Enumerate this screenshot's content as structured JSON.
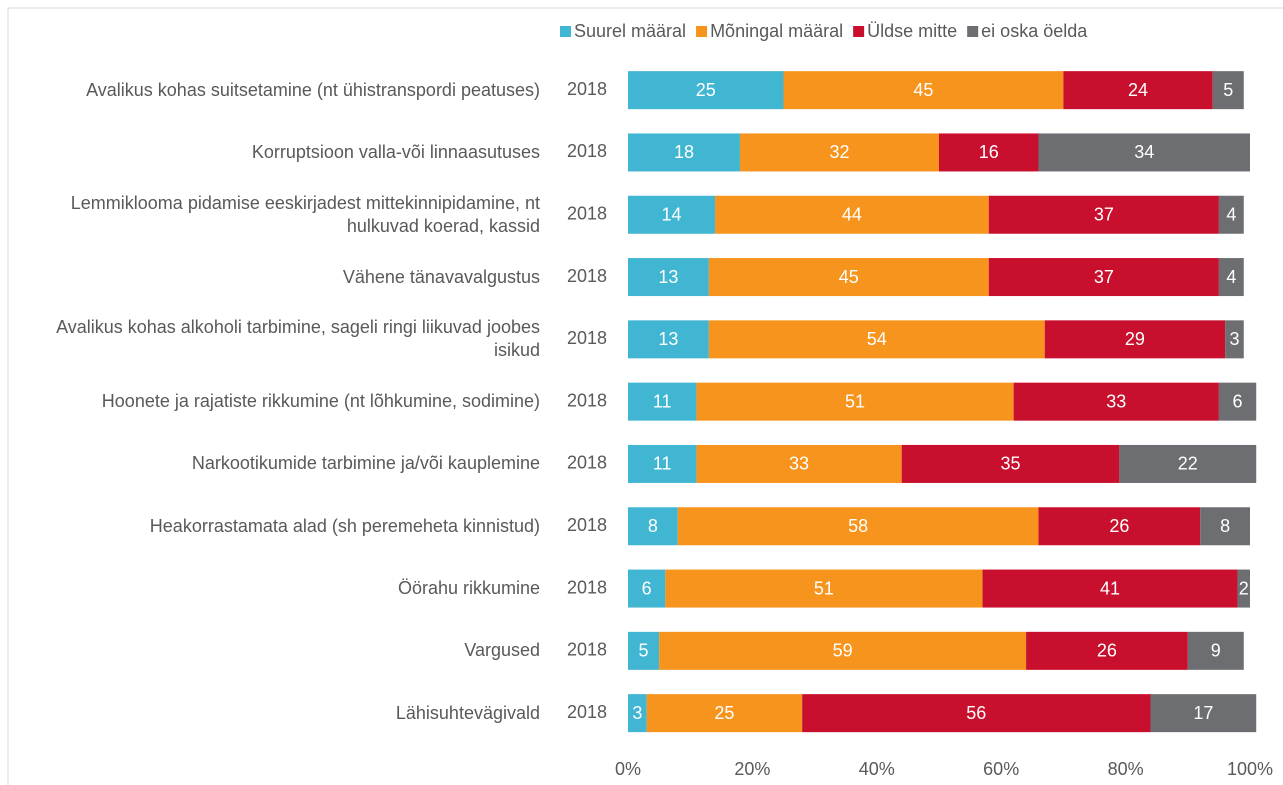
{
  "chart_data": {
    "type": "stacked-bar-horizontal",
    "categories": [
      "Avalikus kohas suitsetamine (nt ühistranspordi peatuses)",
      "Korruptsioon valla-või linnaasutuses",
      "Lemmiklooma pidamise eeskirjadest mittekinnipidamine, nt hulkuvad koerad, kassid",
      "Vähene tänavavalgustus",
      "Avalikus kohas alkoholi tarbimine, sageli ringi liikuvad joobes isikud",
      "Hoonete ja rajatiste rikkumine (nt lõhkumine, sodimine)",
      "Narkootikumide tarbimine ja/või kauplemine",
      "Heakorrastamata alad (sh peremeheta kinnistud)",
      "Öörahu rikkumine",
      "Vargused",
      "Lähisuhtevägivald"
    ],
    "years": [
      "2018",
      "2018",
      "2018",
      "2018",
      "2018",
      "2018",
      "2018",
      "2018",
      "2018",
      "2018",
      "2018"
    ],
    "series": [
      {
        "name": "Suurel määral",
        "color": "#41b6d2",
        "values": [
          25,
          18,
          14,
          13,
          13,
          11,
          11,
          8,
          6,
          5,
          3
        ]
      },
      {
        "name": "Mõningal määral",
        "color": "#f7941d",
        "values": [
          45,
          32,
          44,
          45,
          54,
          51,
          33,
          58,
          51,
          59,
          25
        ]
      },
      {
        "name": "Üldse mitte",
        "color": "#c8102e",
        "values": [
          24,
          16,
          37,
          37,
          29,
          33,
          35,
          26,
          41,
          26,
          56
        ]
      },
      {
        "name": "ei oska öelda",
        "color": "#6d6e71",
        "values": [
          5,
          34,
          4,
          4,
          3,
          6,
          22,
          8,
          2,
          9,
          17
        ]
      }
    ],
    "xlim": [
      0,
      100
    ],
    "xticks": [
      {
        "value": 0,
        "label": "0%"
      },
      {
        "value": 20,
        "label": "20%"
      },
      {
        "value": 40,
        "label": "40%"
      },
      {
        "value": 60,
        "label": "60%"
      },
      {
        "value": 80,
        "label": "80%"
      },
      {
        "value": 100,
        "label": "100%"
      }
    ],
    "legend": "top-right"
  }
}
